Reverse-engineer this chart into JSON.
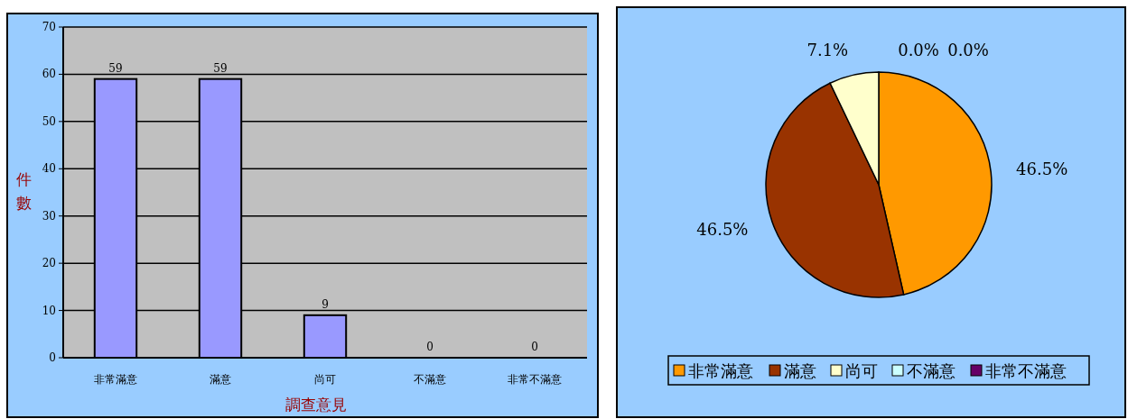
{
  "chart_data": [
    {
      "type": "bar",
      "xlabel": "調查意見",
      "ylabel": "件數",
      "categories": [
        "非常滿意",
        "滿意",
        "尚可",
        "不滿意",
        "非常不滿意"
      ],
      "values": [
        59,
        59,
        9,
        0,
        0
      ],
      "color": "#9999ff",
      "ylim": [
        0,
        70
      ],
      "yticks": [
        0,
        10,
        20,
        30,
        40,
        50,
        60,
        70
      ],
      "grid": "y",
      "data_labels": true
    },
    {
      "type": "pie",
      "categories": [
        "非常滿意",
        "滿意",
        "尚可",
        "不滿意",
        "非常不滿意"
      ],
      "values": [
        46.5,
        46.5,
        7.1,
        0.0,
        0.0
      ],
      "colors": [
        "#ff9900",
        "#993300",
        "#ffffcc",
        "#ccffff",
        "#660066"
      ],
      "value_labels": [
        "46.5%",
        "46.5%",
        "7.1%",
        "0.0%",
        "0.0%"
      ],
      "legend": "bottom"
    }
  ]
}
